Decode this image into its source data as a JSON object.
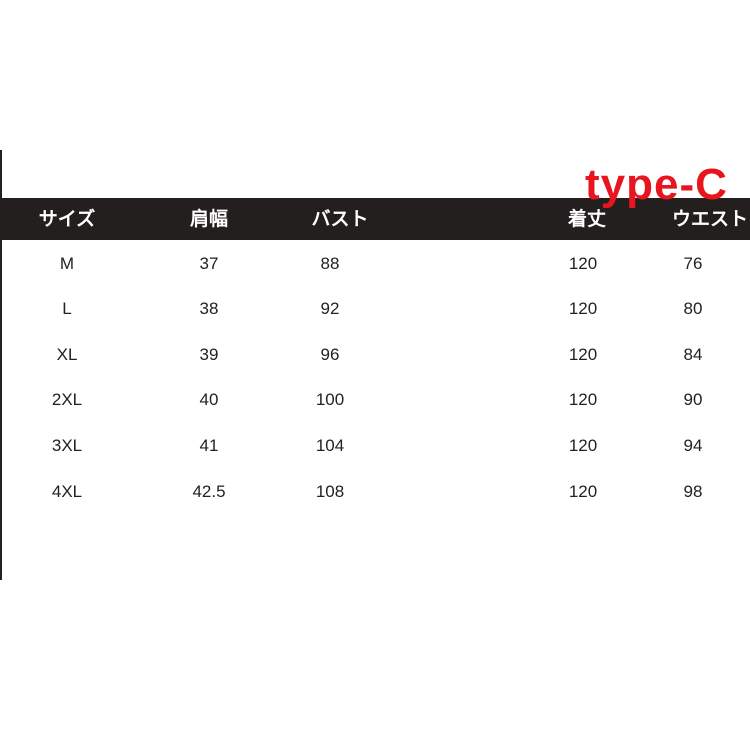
{
  "label": "type-C",
  "colors": {
    "header_bg": "#231f1e",
    "label": "#e8141e"
  },
  "table": {
    "headers": [
      "サイズ",
      "肩幅",
      "バスト",
      "着丈",
      "ウエスト"
    ],
    "rows": [
      [
        "M",
        "37",
        "88",
        "120",
        "76"
      ],
      [
        "L",
        "38",
        "92",
        "120",
        "80"
      ],
      [
        "XL",
        "39",
        "96",
        "120",
        "84"
      ],
      [
        "2XL",
        "40",
        "100",
        "120",
        "90"
      ],
      [
        "3XL",
        "41",
        "104",
        "120",
        "94"
      ],
      [
        "4XL",
        "42.5",
        "108",
        "120",
        "98"
      ]
    ]
  }
}
